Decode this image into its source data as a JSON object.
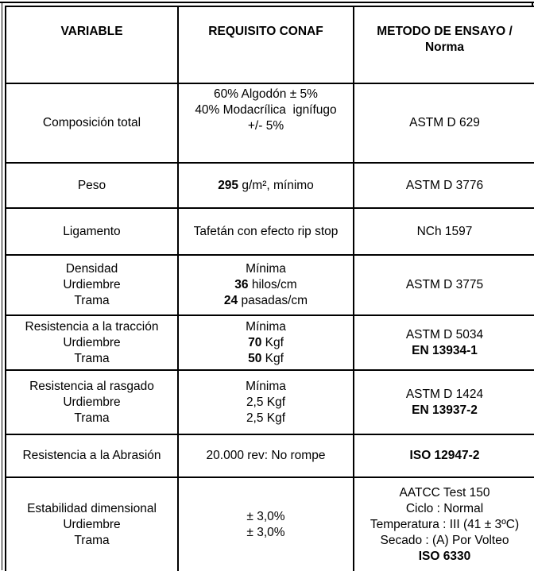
{
  "colors": {
    "background": "#ffffff",
    "text": "#000000",
    "border": "#000000"
  },
  "table": {
    "headers": [
      {
        "id": "variable",
        "lines": [
          "VARIABLE"
        ]
      },
      {
        "id": "requisito",
        "lines": [
          "REQUISITO CONAF"
        ]
      },
      {
        "id": "metodo",
        "lines": [
          "METODO DE ENSAYO /",
          "Norma"
        ]
      }
    ],
    "rows": [
      {
        "variable": [
          [
            {
              "t": "Composición total"
            }
          ]
        ],
        "requisito": [
          [
            {
              "t": "60% Algodón ± 5%"
            }
          ],
          [
            {
              "t": "40% Modacrílica  ignífugo"
            }
          ],
          [
            {
              "t": "+/- 5%"
            }
          ]
        ],
        "metodo": [
          [
            {
              "t": "ASTM D 629"
            }
          ]
        ]
      },
      {
        "variable": [
          [
            {
              "t": "Peso"
            }
          ]
        ],
        "requisito": [
          [
            {
              "t": "295",
              "b": true
            },
            {
              "t": " g/m², mínimo"
            }
          ]
        ],
        "metodo": [
          [
            {
              "t": "ASTM D 3776"
            }
          ]
        ]
      },
      {
        "variable": [
          [
            {
              "t": "Ligamento"
            }
          ]
        ],
        "requisito": [
          [
            {
              "t": "Tafetán con efecto rip stop"
            }
          ]
        ],
        "metodo": [
          [
            {
              "t": "NCh 1597"
            }
          ]
        ]
      },
      {
        "variable": [
          [
            {
              "t": "Densidad"
            }
          ],
          [
            {
              "t": "Urdiembre"
            }
          ],
          [
            {
              "t": "Trama"
            }
          ]
        ],
        "requisito": [
          [
            {
              "t": "Mínima"
            }
          ],
          [
            {
              "t": "36",
              "b": true
            },
            {
              "t": " hilos/cm"
            }
          ],
          [
            {
              "t": "24",
              "b": true
            },
            {
              "t": " pasadas/cm"
            }
          ]
        ],
        "metodo": [
          [
            {
              "t": "ASTM D 3775"
            }
          ]
        ]
      },
      {
        "variable": [
          [
            {
              "t": "Resistencia a la tracción"
            }
          ],
          [
            {
              "t": "Urdiembre"
            }
          ],
          [
            {
              "t": "Trama"
            }
          ]
        ],
        "requisito": [
          [
            {
              "t": "Mínima"
            }
          ],
          [
            {
              "t": "70",
              "b": true
            },
            {
              "t": " Kgf"
            }
          ],
          [
            {
              "t": "50",
              "b": true
            },
            {
              "t": " Kgf"
            }
          ]
        ],
        "metodo": [
          [
            {
              "t": "ASTM D 5034"
            }
          ],
          [
            {
              "t": "EN 13934-1",
              "b": true
            }
          ]
        ]
      },
      {
        "variable": [
          [
            {
              "t": "Resistencia al rasgado"
            }
          ],
          [
            {
              "t": "Urdiembre"
            }
          ],
          [
            {
              "t": "Trama"
            }
          ]
        ],
        "requisito": [
          [
            {
              "t": "Mínima"
            }
          ],
          [
            {
              "t": "2,5 Kgf"
            }
          ],
          [
            {
              "t": "2,5 Kgf"
            }
          ]
        ],
        "metodo": [
          [
            {
              "t": "ASTM D 1424"
            }
          ],
          [
            {
              "t": "EN 13937-2",
              "b": true
            }
          ]
        ]
      },
      {
        "variable": [
          [
            {
              "t": "Resistencia a la Abrasión"
            }
          ]
        ],
        "requisito": [
          [
            {
              "t": "20.000 rev: No rompe"
            }
          ]
        ],
        "metodo": [
          [
            {
              "t": "ISO 12947-2",
              "b": true
            }
          ]
        ]
      },
      {
        "variable": [
          [
            {
              "t": "Estabilidad dimensional"
            }
          ],
          [
            {
              "t": "Urdiembre"
            }
          ],
          [
            {
              "t": "Trama"
            }
          ]
        ],
        "requisito": [
          [
            {
              "t": "± 3,0%"
            }
          ],
          [
            {
              "t": "± 3,0%"
            }
          ]
        ],
        "metodo": [
          [
            {
              "t": "AATCC Test 150"
            }
          ],
          [
            {
              "t": "Ciclo : Normal"
            }
          ],
          [
            {
              "t": "Temperatura : III (41 ± 3ºC)"
            }
          ],
          [
            {
              "t": "Secado : (A) Por Volteo"
            }
          ],
          [
            {
              "t": "ISO 6330",
              "b": true
            }
          ]
        ]
      }
    ]
  }
}
